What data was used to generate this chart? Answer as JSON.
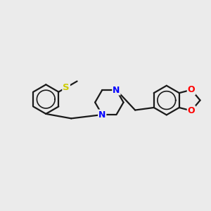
{
  "bg_color": "#ebebeb",
  "bond_color": "#1a1a1a",
  "bond_width": 1.6,
  "N_color": "#0000ff",
  "S_color": "#cccc00",
  "O_color": "#ff0000",
  "font_size_atom": 8.5,
  "figsize": [
    3.0,
    3.0
  ],
  "dpi": 100,
  "xlim": [
    0,
    10
  ],
  "ylim": [
    0,
    10
  ]
}
